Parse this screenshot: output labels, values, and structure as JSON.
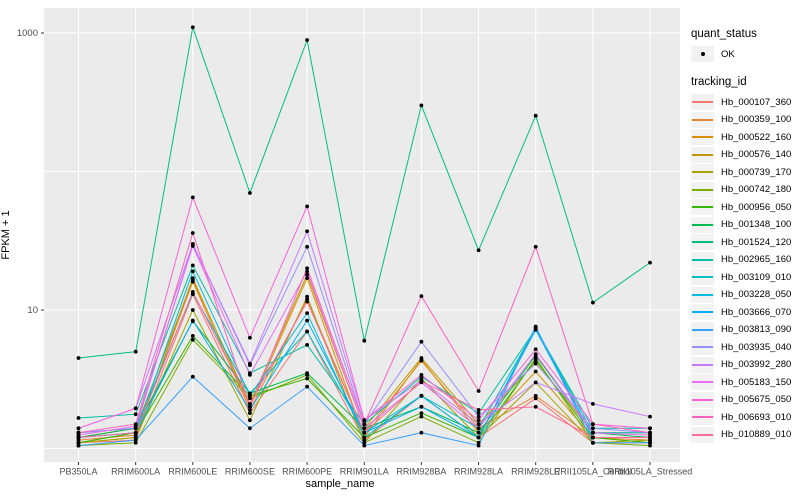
{
  "figure": {
    "x_axis_title": "sample_name",
    "y_axis_title": "FPKM + 1"
  },
  "legend": {
    "quant_status_title": "quant_status",
    "quant_status_items": [
      {
        "label": "OK",
        "marker": "black-point"
      }
    ],
    "tracking_id_title": "tracking_id"
  },
  "chart_data": {
    "type": "line",
    "title": "",
    "xlabel": "sample_name",
    "ylabel": "FPKM + 1",
    "yscale": "log10",
    "ylim": [
      0.95,
      1300
    ],
    "y_gridline_values": [
      1,
      10,
      100,
      1000
    ],
    "y_ticks": [
      {
        "value": 1000,
        "label": "1000"
      },
      {
        "value": 10,
        "label": "10"
      }
    ],
    "grid": true,
    "legend_position": "right",
    "panel_bg": "#EBEBEB",
    "grid_color": "#FFFFFF",
    "tick_text_color": "#4D4D4D",
    "point_color": "#000000",
    "categories": [
      "PB350LA",
      "RRIM600LA",
      "RRIM600LE",
      "RRIM600SE",
      "RRIM600PE",
      "RRIM901LA",
      "RRIM928BA",
      "RRIM928LA",
      "RRIM928LE",
      "RRII105LA_Control",
      "RRII105LA_Stressed"
    ],
    "series": [
      {
        "name": "Hb_000107_360",
        "color": "#F8766D",
        "values": [
          1.1,
          1.15,
          13.0,
          1.8,
          7.0,
          1.15,
          2.4,
          1.2,
          2.3,
          1.1,
          1.1
        ]
      },
      {
        "name": "Hb_000359_100",
        "color": "#EA8331",
        "values": [
          1.15,
          1.25,
          16.0,
          1.9,
          12.0,
          1.3,
          4.3,
          1.4,
          2.4,
          1.2,
          1.15
        ]
      },
      {
        "name": "Hb_000522_160",
        "color": "#D89000",
        "values": [
          1.1,
          1.2,
          17.0,
          2.0,
          17.0,
          1.2,
          4.4,
          1.3,
          3.6,
          1.2,
          1.1
        ]
      },
      {
        "name": "Hb_000576_140",
        "color": "#C09B00",
        "values": [
          1.2,
          1.4,
          16.5,
          2.1,
          18.0,
          1.4,
          4.5,
          1.5,
          4.2,
          1.3,
          1.3
        ]
      },
      {
        "name": "Hb_000739_170",
        "color": "#A3A500",
        "values": [
          1.1,
          1.2,
          10.0,
          1.6,
          12.5,
          1.1,
          3.2,
          1.2,
          3.0,
          1.1,
          1.15
        ]
      },
      {
        "name": "Hb_000742_180",
        "color": "#7CAE00",
        "values": [
          1.05,
          1.1,
          6.1,
          2.3,
          3.4,
          1.1,
          1.7,
          1.1,
          4.5,
          1.1,
          1.05
        ]
      },
      {
        "name": "Hb_000956_050",
        "color": "#39B600",
        "values": [
          1.1,
          1.3,
          6.5,
          2.4,
          3.2,
          1.2,
          1.8,
          1.2,
          4.4,
          1.2,
          1.1
        ]
      },
      {
        "name": "Hb_001348_100",
        "color": "#00BB4E",
        "values": [
          1.2,
          1.4,
          8.3,
          2.5,
          3.5,
          1.4,
          2.0,
          1.3,
          4.7,
          1.3,
          1.2
        ]
      },
      {
        "name": "Hb_001524_120",
        "color": "#00BF7D",
        "values": [
          4.5,
          5.0,
          1100,
          70.0,
          890,
          6.0,
          300,
          27.0,
          253,
          11.3,
          22.0
        ]
      },
      {
        "name": "Hb_002965_160",
        "color": "#00C1A3",
        "values": [
          1.66,
          1.77,
          21.0,
          3.5,
          5.6,
          1.5,
          3.3,
          1.8,
          7.3,
          1.4,
          1.4
        ]
      },
      {
        "name": "Hb_003109_010",
        "color": "#00BFC4",
        "values": [
          1.3,
          1.4,
          13.2,
          2.5,
          7.0,
          1.3,
          2.4,
          1.4,
          7.4,
          1.3,
          1.3
        ]
      },
      {
        "name": "Hb_003228_050",
        "color": "#00BAE0",
        "values": [
          1.2,
          1.3,
          19.0,
          2.4,
          9.5,
          1.2,
          2.4,
          1.2,
          7.5,
          1.2,
          1.2
        ]
      },
      {
        "name": "Hb_003666_070",
        "color": "#00B0F6",
        "values": [
          1.2,
          1.3,
          8.4,
          1.9,
          8.4,
          1.3,
          2.0,
          1.2,
          7.2,
          1.2,
          1.2
        ]
      },
      {
        "name": "Hb_003813_090",
        "color": "#35A2FF",
        "values": [
          1.05,
          1.15,
          3.3,
          1.4,
          2.8,
          1.05,
          1.3,
          1.05,
          7.6,
          1.1,
          1.1
        ]
      },
      {
        "name": "Hb_003935_040",
        "color": "#9590FF",
        "values": [
          1.3,
          1.4,
          29.8,
          4.0,
          28.6,
          1.5,
          5.9,
          1.7,
          4.1,
          1.4,
          1.3
        ]
      },
      {
        "name": "Hb_003992_280",
        "color": "#C77CFF",
        "values": [
          1.4,
          1.95,
          30.0,
          4.1,
          37.0,
          1.6,
          3.1,
          1.5,
          3.0,
          2.1,
          1.7
        ]
      },
      {
        "name": "Hb_005183_150",
        "color": "#E76BF3",
        "values": [
          1.25,
          1.45,
          29.0,
          3.4,
          19.0,
          1.4,
          3.0,
          1.4,
          4.8,
          1.3,
          1.25
        ]
      },
      {
        "name": "Hb_005675_050",
        "color": "#FA62DB",
        "values": [
          1.4,
          1.95,
          65.0,
          6.3,
          56.0,
          1.6,
          3.4,
          1.6,
          5.2,
          1.5,
          1.4
        ]
      },
      {
        "name": "Hb_006693_010",
        "color": "#FF62BC",
        "values": [
          1.3,
          1.5,
          36.0,
          2.0,
          20.0,
          1.5,
          12.6,
          2.6,
          28.6,
          1.5,
          1.3
        ]
      },
      {
        "name": "Hb_010889_010",
        "color": "#FF6A98",
        "values": [
          1.2,
          1.3,
          13.5,
          2.1,
          11.5,
          1.3,
          3.05,
          1.9,
          2.0,
          1.2,
          1.2
        ]
      }
    ]
  }
}
